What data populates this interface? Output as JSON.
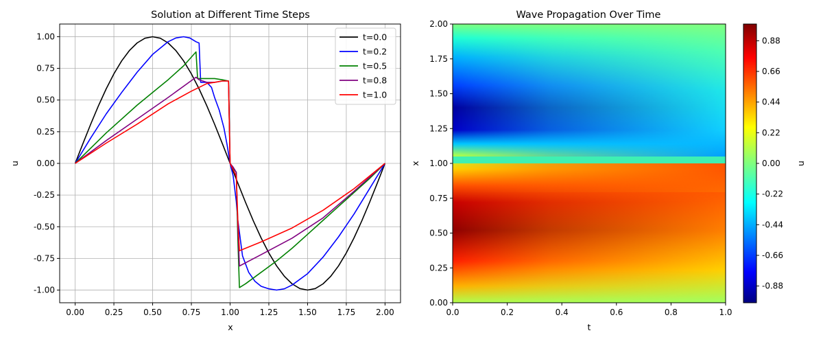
{
  "chart_data": [
    {
      "type": "line",
      "title": "Solution at Different Time Steps",
      "xlabel": "x",
      "ylabel": "u",
      "xlim": [
        -0.1,
        2.1
      ],
      "ylim": [
        -1.1,
        1.1
      ],
      "grid": true,
      "legend_position": "top-right",
      "x_ticks": [
        "0.00",
        "0.25",
        "0.50",
        "0.75",
        "1.00",
        "1.25",
        "1.50",
        "1.75",
        "2.00"
      ],
      "y_ticks": [
        "-1.00",
        "-0.75",
        "-0.50",
        "-0.25",
        "0.00",
        "0.25",
        "0.50",
        "0.75",
        "1.00"
      ],
      "series": [
        {
          "name": "t=0.0",
          "color": "#000000",
          "x": [
            0,
            0.05,
            0.1,
            0.15,
            0.2,
            0.25,
            0.3,
            0.35,
            0.4,
            0.45,
            0.5,
            0.55,
            0.6,
            0.65,
            0.7,
            0.75,
            0.8,
            0.85,
            0.9,
            0.95,
            1.0,
            1.05,
            1.1,
            1.15,
            1.2,
            1.25,
            1.3,
            1.35,
            1.4,
            1.45,
            1.5,
            1.55,
            1.6,
            1.65,
            1.7,
            1.75,
            1.8,
            1.85,
            1.9,
            1.95,
            2.0
          ],
          "y": [
            0,
            0.156,
            0.309,
            0.454,
            0.588,
            0.707,
            0.809,
            0.891,
            0.951,
            0.988,
            1.0,
            0.988,
            0.951,
            0.891,
            0.809,
            0.707,
            0.588,
            0.454,
            0.309,
            0.156,
            0,
            -0.156,
            -0.309,
            -0.454,
            -0.588,
            -0.707,
            -0.809,
            -0.891,
            -0.951,
            -0.988,
            -1.0,
            -0.988,
            -0.951,
            -0.891,
            -0.809,
            -0.707,
            -0.588,
            -0.454,
            -0.309,
            -0.156,
            0
          ]
        },
        {
          "name": "t=0.2",
          "color": "#0000ff",
          "x": [
            0,
            0.1,
            0.2,
            0.3,
            0.4,
            0.5,
            0.6,
            0.65,
            0.7,
            0.74,
            0.78,
            0.8,
            0.81,
            0.85,
            0.88,
            0.9,
            0.93,
            0.96,
            0.98,
            1.0,
            1.02,
            1.04,
            1.05,
            1.08,
            1.12,
            1.16,
            1.2,
            1.25,
            1.3,
            1.35,
            1.4,
            1.5,
            1.6,
            1.7,
            1.8,
            1.9,
            2.0
          ],
          "y": [
            0,
            0.2,
            0.39,
            0.56,
            0.72,
            0.86,
            0.96,
            0.99,
            1.0,
            0.99,
            0.96,
            0.95,
            0.64,
            0.64,
            0.6,
            0.52,
            0.42,
            0.28,
            0.15,
            0.0,
            -0.1,
            -0.3,
            -0.45,
            -0.73,
            -0.86,
            -0.93,
            -0.97,
            -0.99,
            -1.0,
            -0.99,
            -0.96,
            -0.87,
            -0.74,
            -0.58,
            -0.4,
            -0.2,
            0
          ]
        },
        {
          "name": "t=0.5",
          "color": "#008000",
          "x": [
            0,
            0.2,
            0.4,
            0.6,
            0.7,
            0.78,
            0.79,
            0.85,
            0.9,
            0.95,
            0.99,
            1.0,
            1.02,
            1.04,
            1.05,
            1.06,
            1.1,
            1.2,
            1.3,
            1.4,
            1.5,
            1.6,
            1.7,
            1.8,
            1.9,
            2.0
          ],
          "y": [
            0,
            0.24,
            0.46,
            0.66,
            0.77,
            0.88,
            0.67,
            0.67,
            0.67,
            0.66,
            0.65,
            0.0,
            -0.04,
            -0.07,
            -0.6,
            -0.98,
            -0.95,
            -0.86,
            -0.77,
            -0.67,
            -0.56,
            -0.45,
            -0.34,
            -0.23,
            -0.12,
            0
          ]
        },
        {
          "name": "t=0.8",
          "color": "#800080",
          "x": [
            0,
            0.2,
            0.4,
            0.6,
            0.78,
            0.8,
            0.85,
            0.9,
            0.95,
            0.99,
            1.0,
            1.02,
            1.04,
            1.05,
            1.06,
            1.2,
            1.4,
            1.6,
            1.8,
            2.0
          ],
          "y": [
            0,
            0.18,
            0.35,
            0.52,
            0.68,
            0.66,
            0.64,
            0.64,
            0.65,
            0.65,
            0.0,
            -0.03,
            -0.07,
            -0.5,
            -0.81,
            -0.72,
            -0.59,
            -0.43,
            -0.22,
            0
          ]
        },
        {
          "name": "t=1.0",
          "color": "#ff0000",
          "x": [
            0,
            0.2,
            0.4,
            0.6,
            0.75,
            0.8,
            0.85,
            0.9,
            0.95,
            0.99,
            1.0,
            1.02,
            1.04,
            1.05,
            1.06,
            1.2,
            1.4,
            1.6,
            1.8,
            2.0
          ],
          "y": [
            0,
            0.16,
            0.31,
            0.47,
            0.57,
            0.6,
            0.63,
            0.64,
            0.65,
            0.65,
            0.0,
            -0.05,
            -0.1,
            -0.45,
            -0.69,
            -0.62,
            -0.51,
            -0.37,
            -0.2,
            0
          ]
        }
      ]
    },
    {
      "type": "heatmap",
      "title": "Wave Propagation Over Time",
      "xlabel": "t",
      "ylabel": "x",
      "xlim": [
        0,
        1
      ],
      "ylim": [
        0,
        2
      ],
      "x_ticks": [
        "0.0",
        "0.2",
        "0.4",
        "0.6",
        "0.8",
        "1.0"
      ],
      "y_ticks": [
        "0.00",
        "0.25",
        "0.50",
        "0.75",
        "1.00",
        "1.25",
        "1.50",
        "1.75",
        "2.00"
      ],
      "colormap": "jet",
      "colorbar": {
        "label": "u",
        "range": [
          -1.0,
          1.0
        ],
        "ticks": [
          "-0.88",
          "-0.66",
          "-0.44",
          "-0.22",
          "0.00",
          "0.22",
          "0.44",
          "0.66",
          "0.88"
        ]
      }
    }
  ]
}
